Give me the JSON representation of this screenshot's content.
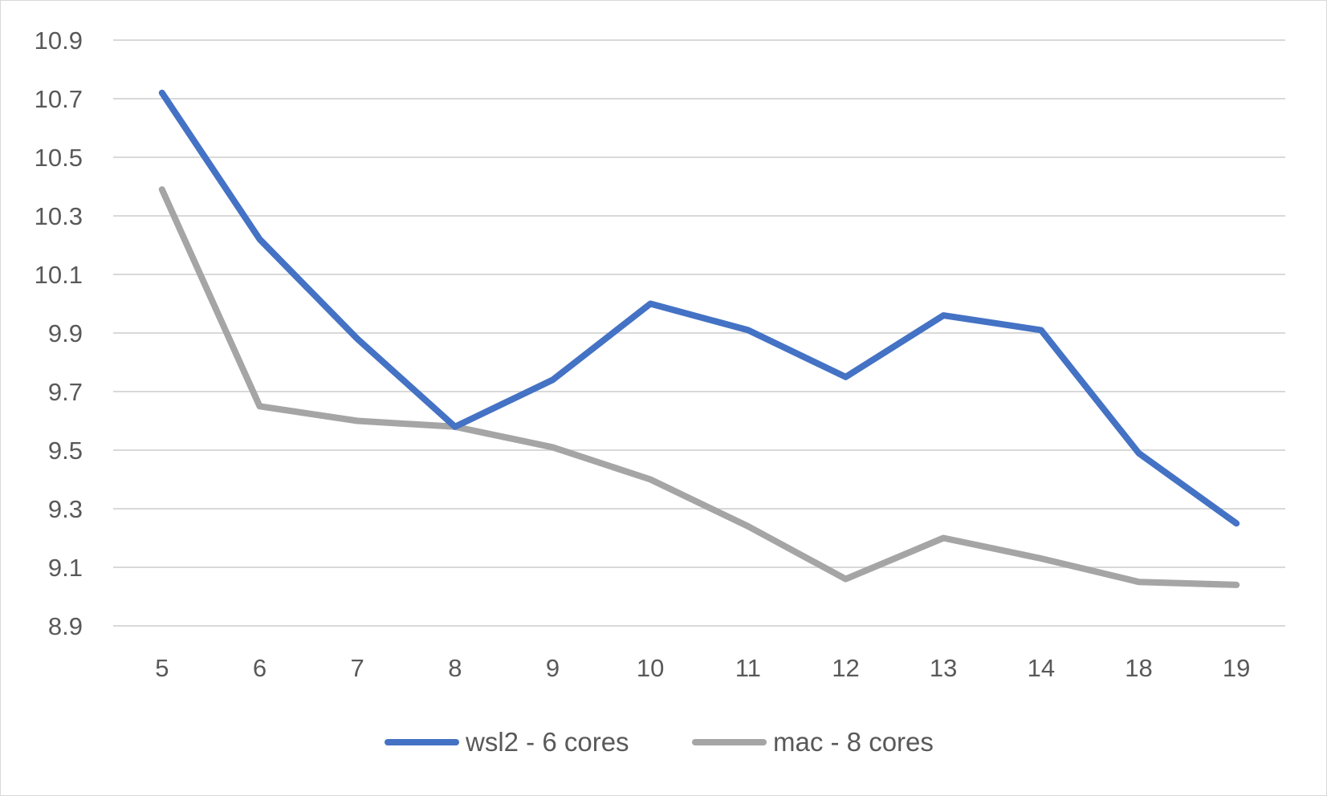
{
  "chart_data": {
    "type": "line",
    "title": "",
    "xlabel": "",
    "ylabel": "",
    "categories": [
      "5",
      "6",
      "7",
      "8",
      "9",
      "10",
      "11",
      "12",
      "13",
      "14",
      "18",
      "19"
    ],
    "y_ticks": [
      "10.9",
      "10.7",
      "10.5",
      "10.3",
      "10.1",
      "9.9",
      "9.7",
      "9.5",
      "9.3",
      "9.1",
      "8.9"
    ],
    "ylim": [
      8.9,
      10.9
    ],
    "grid": true,
    "legend_position": "bottom",
    "series": [
      {
        "name": "wsl2 - 6 cores",
        "color": "#4472c4",
        "values": [
          10.72,
          10.22,
          9.88,
          9.58,
          9.74,
          10.0,
          9.91,
          9.75,
          9.96,
          9.91,
          9.49,
          9.25
        ]
      },
      {
        "name": "mac - 8 cores",
        "color": "#a5a5a5",
        "values": [
          10.39,
          9.65,
          9.6,
          9.58,
          9.51,
          9.4,
          9.24,
          9.06,
          9.2,
          9.13,
          9.05,
          9.04
        ]
      }
    ]
  }
}
